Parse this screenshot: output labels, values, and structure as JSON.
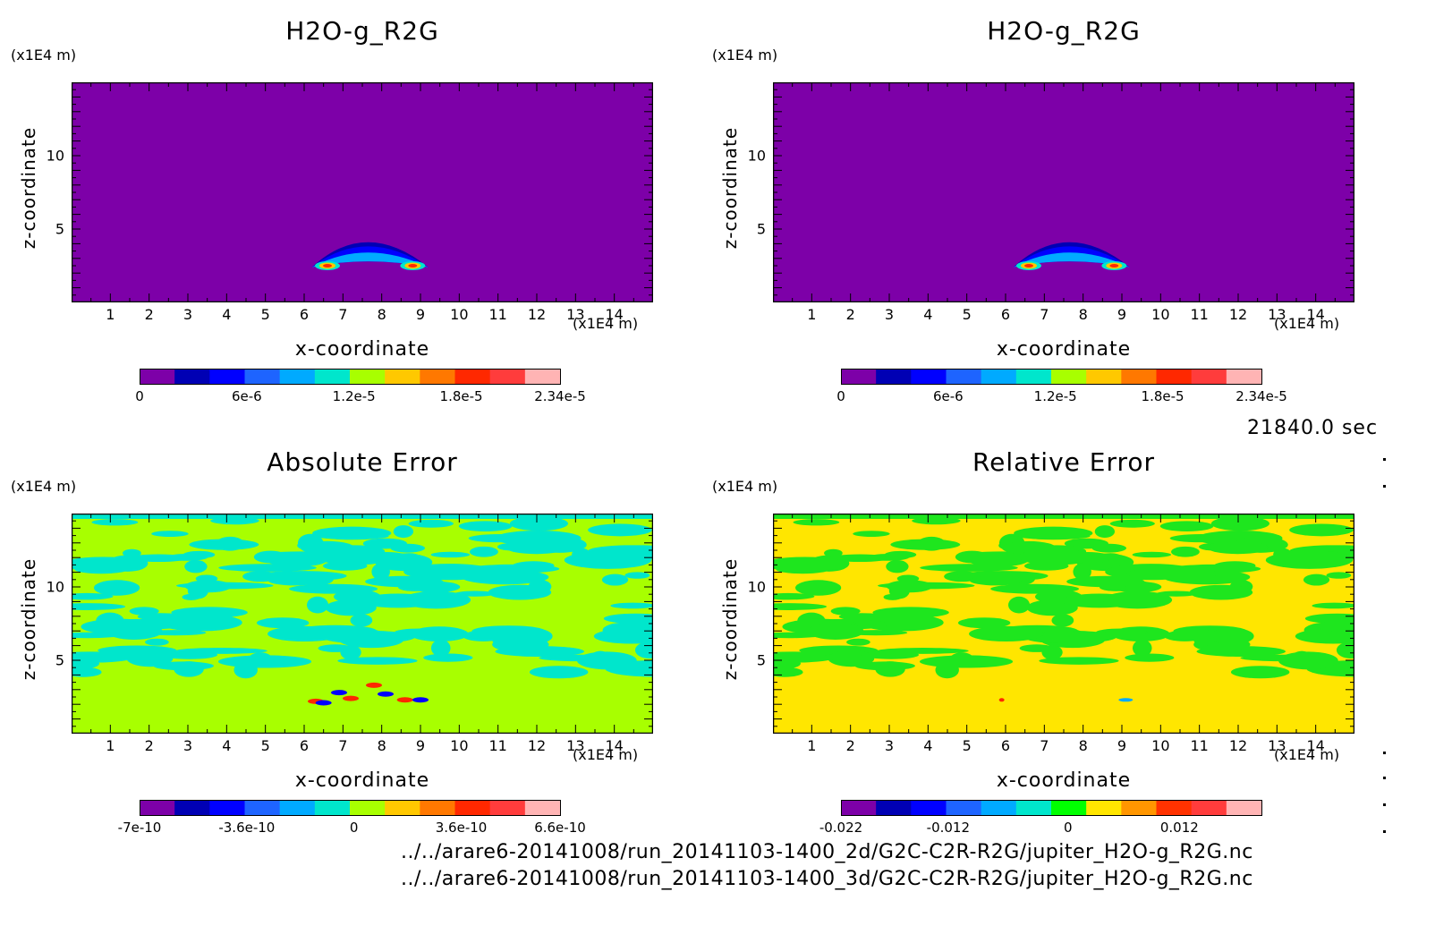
{
  "chart_data": [
    {
      "type": "heatmap",
      "title": "H2O-g_R2G",
      "xlabel": "x-coordinate",
      "ylabel": "z-coordinate",
      "x_unit": "(x1E4 m)",
      "y_unit": "(x1E4 m)",
      "xlim": [
        0,
        15
      ],
      "ylim": [
        0,
        15
      ],
      "x_ticks": [
        "1",
        "2",
        "3",
        "4",
        "5",
        "6",
        "7",
        "8",
        "9",
        "10",
        "11",
        "12",
        "13",
        "14"
      ],
      "y_ticks": [
        "5",
        "10"
      ],
      "colorbar_ticks": [
        "0",
        "6e-6",
        "1.2e-5",
        "1.8e-5",
        "2.34e-5"
      ],
      "colorbar_colors": [
        "#7d00a8",
        "#0000b4",
        "#0000ff",
        "#1e64ff",
        "#00aaff",
        "#00e6cc",
        "#a8ff00",
        "#ffc800",
        "#ff7800",
        "#ff2800",
        "#ff3c3c",
        "#ffb4b4"
      ],
      "background": "#7d00a8"
    },
    {
      "type": "heatmap",
      "title": "H2O-g_R2G",
      "xlabel": "x-coordinate",
      "ylabel": "z-coordinate",
      "x_unit": "(x1E4 m)",
      "y_unit": "(x1E4 m)",
      "xlim": [
        0,
        15
      ],
      "ylim": [
        0,
        15
      ],
      "x_ticks": [
        "1",
        "2",
        "3",
        "4",
        "5",
        "6",
        "7",
        "8",
        "9",
        "10",
        "11",
        "12",
        "13",
        "14"
      ],
      "y_ticks": [
        "5",
        "10"
      ],
      "colorbar_ticks": [
        "0",
        "6e-6",
        "1.2e-5",
        "1.8e-5",
        "2.34e-5"
      ],
      "colorbar_colors": [
        "#7d00a8",
        "#0000b4",
        "#0000ff",
        "#1e64ff",
        "#00aaff",
        "#00e6cc",
        "#a8ff00",
        "#ffc800",
        "#ff7800",
        "#ff2800",
        "#ff3c3c",
        "#ffb4b4"
      ],
      "background": "#7d00a8"
    },
    {
      "type": "heatmap",
      "title": "Absolute Error",
      "xlabel": "x-coordinate",
      "ylabel": "z-coordinate",
      "x_unit": "(x1E4 m)",
      "y_unit": "(x1E4 m)",
      "xlim": [
        0,
        15
      ],
      "ylim": [
        0,
        15
      ],
      "x_ticks": [
        "1",
        "2",
        "3",
        "4",
        "5",
        "6",
        "7",
        "8",
        "9",
        "10",
        "11",
        "12",
        "13",
        "14"
      ],
      "y_ticks": [
        "5",
        "10"
      ],
      "colorbar_ticks": [
        "-7e-10",
        "-3.6e-10",
        "0",
        "3.6e-10",
        "6.6e-10"
      ],
      "colorbar_colors": [
        "#7d00a8",
        "#0000b4",
        "#0000ff",
        "#1e64ff",
        "#00aaff",
        "#00e6cc",
        "#a8ff00",
        "#ffc800",
        "#ff7800",
        "#ff2800",
        "#ff3c3c",
        "#ffb4b4"
      ],
      "background": "#a8ff00",
      "patch_color": "#00e6cc"
    },
    {
      "type": "heatmap",
      "title": "Relative Error",
      "xlabel": "x-coordinate",
      "ylabel": "z-coordinate",
      "x_unit": "(x1E4 m)",
      "y_unit": "(x1E4 m)",
      "xlim": [
        0,
        15
      ],
      "ylim": [
        0,
        15
      ],
      "x_ticks": [
        "1",
        "2",
        "3",
        "4",
        "5",
        "6",
        "7",
        "8",
        "9",
        "10",
        "11",
        "12",
        "13",
        "14"
      ],
      "y_ticks": [
        "5",
        "10"
      ],
      "colorbar_ticks": [
        "-0.022",
        "-0.012",
        "0",
        "0.012"
      ],
      "colorbar_colors": [
        "#7d00a8",
        "#0000b4",
        "#0000ff",
        "#1e64ff",
        "#00aaff",
        "#00e6cc",
        "#00ff00",
        "#ffe600",
        "#ff9600",
        "#ff3200",
        "#ff3c3c",
        "#ffb4b4"
      ],
      "background": "#ffe600",
      "patch_color": "#1ee61e"
    }
  ],
  "timestamp": "21840.0 sec",
  "file_paths": [
    "../../arare6-20141008/run_20141103-1400_2d/G2C-C2R-R2G/jupiter_H2O-g_R2G.nc",
    "../../arare6-20141008/run_20141103-1400_3d/G2C-C2R-R2G/jupiter_H2O-g_R2G.nc"
  ]
}
